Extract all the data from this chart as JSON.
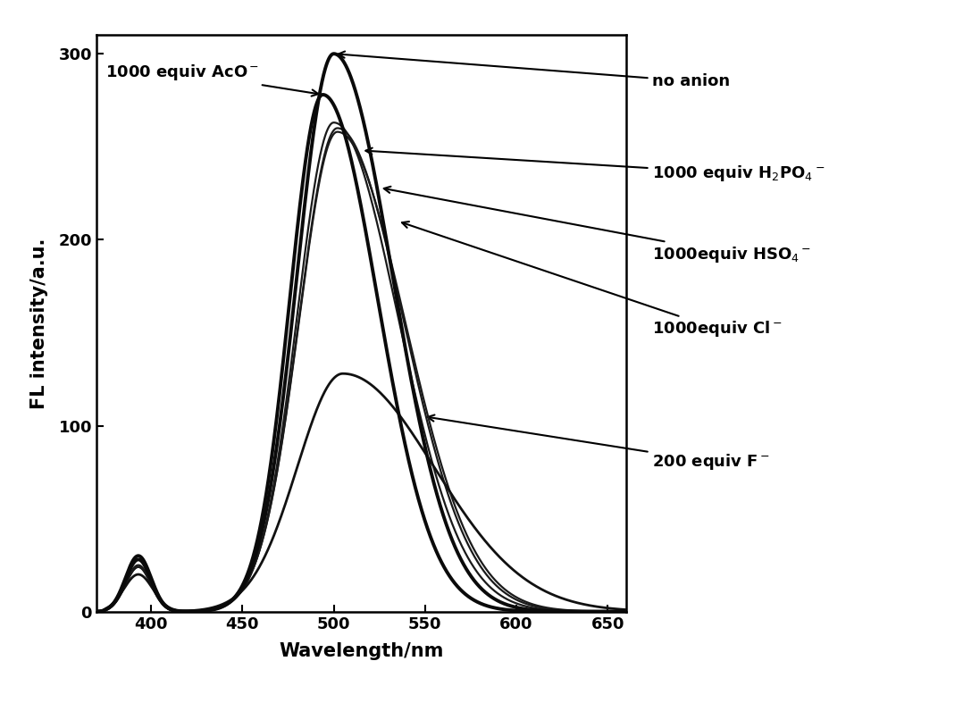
{
  "xlabel": "Wavelength/nm",
  "ylabel": "FL intensity/a.u.",
  "xlim": [
    370,
    660
  ],
  "ylim": [
    0,
    310
  ],
  "xticks": [
    400,
    450,
    500,
    550,
    600,
    650
  ],
  "yticks": [
    0,
    100,
    200,
    300
  ],
  "background_color": "#ffffff"
}
